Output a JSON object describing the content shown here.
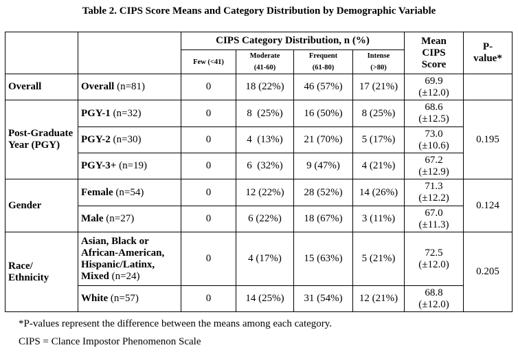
{
  "title": "Table 2. CIPS Score Means and Category Distribution by Demographic Variable",
  "header": {
    "distribution": "CIPS Category Distribution, n (%)",
    "few_name": "Few",
    "few_range": "(<41)",
    "moderate_name": "Moderate",
    "moderate_range": "(41-60)",
    "frequent_name": "Frequent",
    "frequent_range": "(61-80)",
    "intense_name": "Intense",
    "intense_range": "(>80)",
    "mean_line1": "Mean",
    "mean_line2": "CIPS",
    "mean_line3": "Score",
    "p_line1": "P-",
    "p_line2": "value*"
  },
  "groups": [
    {
      "label": "Overall",
      "p_value": "",
      "rows": [
        {
          "name": "Overall",
          "n": "(n=81)",
          "few": "0",
          "moderate": "18 (22%)",
          "frequent": "46 (57%)",
          "intense": "17 (21%)",
          "mean": "69.9",
          "sd": "(±12.0)"
        }
      ]
    },
    {
      "label": "Post-Graduate Year (PGY)",
      "p_value": "0.195",
      "rows": [
        {
          "name": "PGY-1",
          "n": "(n=32)",
          "few": "0",
          "moderate": "8  (25%)",
          "frequent": "16 (50%)",
          "intense": "8 (25%)",
          "mean": "68.6",
          "sd": "(±12.5)"
        },
        {
          "name": "PGY-2",
          "n": "(n=30)",
          "few": "0",
          "moderate": "4  (13%)",
          "frequent": "21 (70%)",
          "intense": "5 (17%)",
          "mean": "73.0",
          "sd": "(±10.6)"
        },
        {
          "name": "PGY-3+",
          "n": "(n=19)",
          "few": "0",
          "moderate": "6  (32%)",
          "frequent": "9 (47%)",
          "intense": "4 (21%)",
          "mean": "67.2",
          "sd": "(±12.9)"
        }
      ]
    },
    {
      "label": "Gender",
      "p_value": "0.124",
      "rows": [
        {
          "name": "Female",
          "n": "(n=54)",
          "few": "0",
          "moderate": "12 (22%)",
          "frequent": "28 (52%)",
          "intense": "14 (26%)",
          "mean": "71.3",
          "sd": "(±12.2)"
        },
        {
          "name": "Male",
          "n": "(n=27)",
          "few": "0",
          "moderate": "6 (22%)",
          "frequent": "18 (67%)",
          "intense": "3 (11%)",
          "mean": "67.0",
          "sd": "(±11.3)"
        }
      ]
    },
    {
      "label": "Race/ Ethnicity",
      "p_value": "0.205",
      "rows": [
        {
          "name": "Asian, Black or African-American, Hispanic/Latinx, Mixed",
          "n": "(n=24)",
          "few": "0",
          "moderate": "4 (17%)",
          "frequent": "15 (63%)",
          "intense": "5 (21%)",
          "mean": "72.5",
          "sd": "(±12.0)"
        },
        {
          "name": "White",
          "n": "(n=57)",
          "few": "0",
          "moderate": "14 (25%)",
          "frequent": "31 (54%)",
          "intense": "12 (21%)",
          "mean": "68.8",
          "sd": "(±12.0)"
        }
      ]
    }
  ],
  "footnotes": {
    "pvalue": "*P-values represent the difference between the means among each category.",
    "cips": "CIPS = Clance Impostor Phenomenon Scale"
  }
}
